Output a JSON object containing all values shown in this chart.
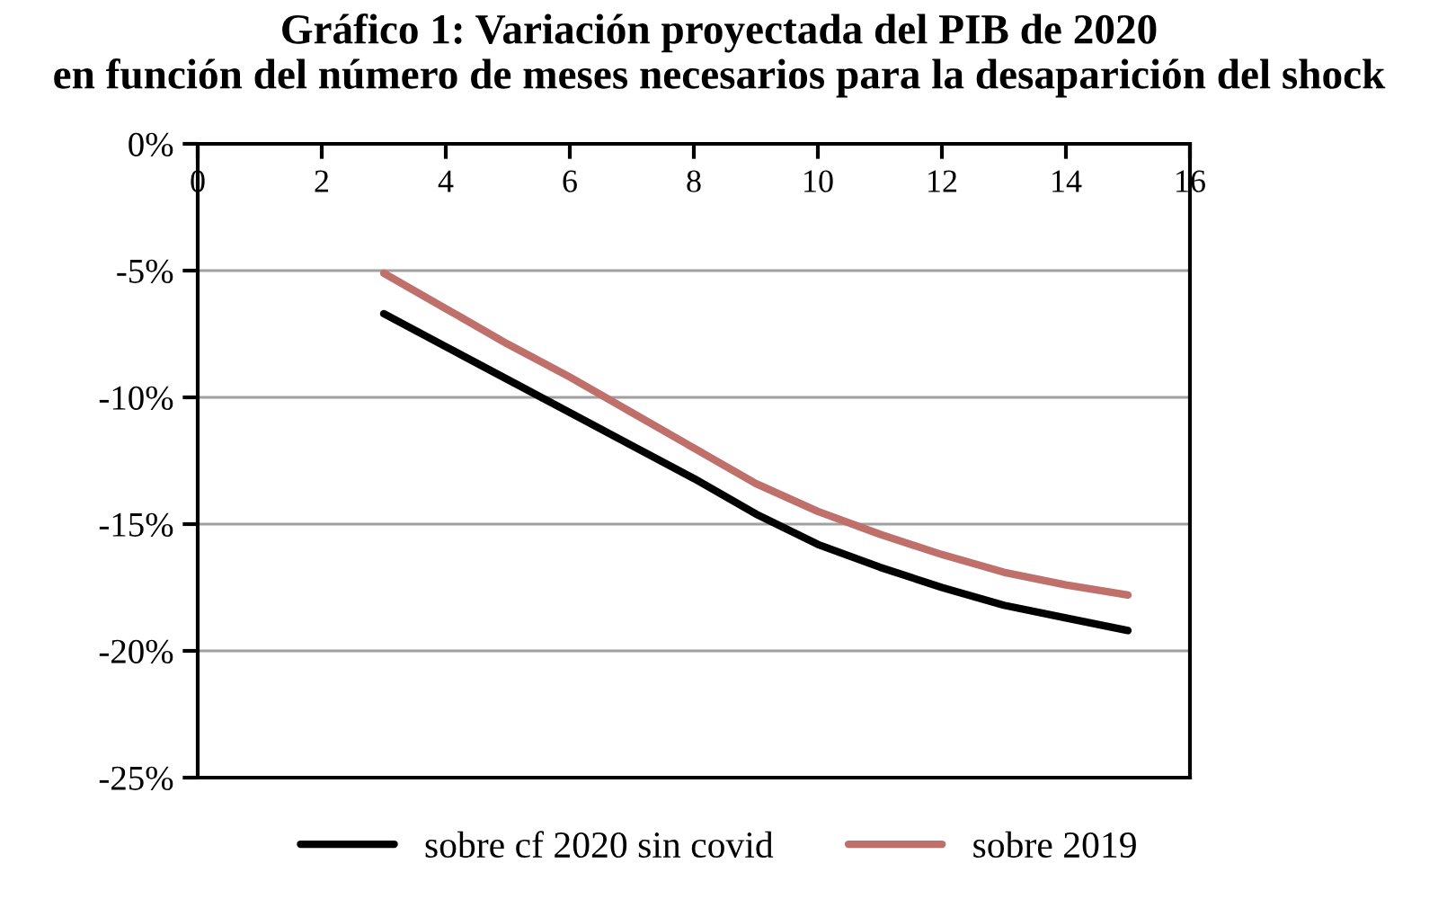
{
  "chart_data": {
    "type": "line",
    "title": "Gráfico 1: Variación proyectada del PIB de 2020\nen función del número de meses necesarios para la desaparición del shock",
    "x": [
      3,
      4,
      5,
      6,
      7,
      8,
      9,
      10,
      11,
      12,
      13,
      14,
      15
    ],
    "series": [
      {
        "name": "sobre cf 2020 sin covid",
        "color": "#000000",
        "values": [
          -6.7,
          -8.0,
          -9.3,
          -10.6,
          -11.9,
          -13.2,
          -14.6,
          -15.8,
          -16.7,
          -17.5,
          -18.2,
          -18.7,
          -19.2
        ]
      },
      {
        "name": "sobre 2019",
        "color": "#c0706b",
        "values": [
          -5.1,
          -6.5,
          -7.9,
          -9.2,
          -10.6,
          -12.0,
          -13.4,
          -14.5,
          -15.4,
          -16.2,
          -16.9,
          -17.4,
          -17.8
        ]
      }
    ],
    "xlim": [
      0,
      16
    ],
    "xticks": [
      0,
      2,
      4,
      6,
      8,
      10,
      12,
      14,
      16
    ],
    "ylim": [
      -25,
      0
    ],
    "yticks": [
      {
        "value": -25,
        "label": "-25%"
      },
      {
        "value": -20,
        "label": "-20%"
      },
      {
        "value": -15,
        "label": "-15%"
      },
      {
        "value": -10,
        "label": "-10%"
      },
      {
        "value": -5,
        "label": "-5%"
      },
      {
        "value": 0,
        "label": "0%"
      }
    ],
    "grid": "y",
    "legend": "bottom",
    "marker": "none",
    "line_style": "solid"
  }
}
